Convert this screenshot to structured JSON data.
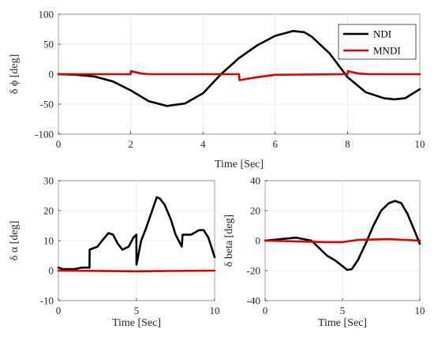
{
  "chart_data": [
    {
      "type": "line",
      "id": "phi",
      "xlabel": "Time [Sec]",
      "ylabel": "δ ϕ [deg]",
      "xlim": [
        0,
        10
      ],
      "ylim": [
        -100,
        100
      ],
      "xticks": [
        "0",
        "2",
        "4",
        "6",
        "8",
        "10"
      ],
      "yticks": [
        "-100",
        "-50",
        "0",
        "50",
        "100"
      ],
      "grid": true,
      "legend": {
        "position": "top-right",
        "entries": [
          "NDI",
          "MNDI"
        ]
      },
      "series": [
        {
          "name": "NDI",
          "color": "#000000",
          "x": [
            0,
            0.5,
            1.0,
            1.5,
            2.0,
            2.5,
            3.0,
            3.5,
            4.0,
            4.5,
            5.0,
            5.5,
            6.0,
            6.5,
            6.8,
            7.0,
            7.5,
            8.0,
            8.5,
            9.0,
            9.3,
            9.6,
            10.0
          ],
          "y": [
            0,
            -1,
            -4,
            -12,
            -27,
            -45,
            -53,
            -49,
            -32,
            0,
            27,
            48,
            64,
            72,
            70,
            63,
            35,
            -5,
            -30,
            -40,
            -42,
            -40,
            -25
          ]
        },
        {
          "name": "MNDI",
          "color": "#e00000",
          "x": [
            0,
            2.0,
            2.01,
            2.3,
            2.5,
            5.0,
            5.01,
            5.5,
            6.0,
            8.0,
            8.01,
            8.3,
            8.6,
            10.0
          ],
          "y": [
            0,
            0,
            5,
            1,
            0,
            0,
            -10,
            -5,
            -1,
            0,
            5,
            1,
            0,
            0
          ]
        }
      ]
    },
    {
      "type": "line",
      "id": "alpha",
      "xlabel": "Time [Sec]",
      "ylabel": "δ α [deg]",
      "xlim": [
        0,
        10
      ],
      "ylim": [
        -10,
        30
      ],
      "xticks": [
        "0",
        "5",
        "10"
      ],
      "yticks": [
        "-10",
        "0",
        "10",
        "20",
        "30"
      ],
      "grid": true,
      "series": [
        {
          "name": "NDI",
          "color": "#000000",
          "x": [
            0,
            0.3,
            1.0,
            1.5,
            1.99,
            2.0,
            2.5,
            2.8,
            3.2,
            3.5,
            3.8,
            4.1,
            4.5,
            4.8,
            4.99,
            5.0,
            5.3,
            5.6,
            6.0,
            6.3,
            6.5,
            6.8,
            7.2,
            7.5,
            7.9,
            7.95,
            8.0,
            8.5,
            9.0,
            9.3,
            9.6,
            10.0
          ],
          "y": [
            1,
            0.5,
            0.5,
            1,
            1,
            7,
            8,
            10,
            12.5,
            12,
            9,
            7,
            8,
            11,
            12,
            2,
            10,
            14,
            20,
            24.5,
            24,
            22,
            17,
            12,
            8,
            12,
            12,
            12,
            13.5,
            13.5,
            11,
            4.5
          ]
        },
        {
          "name": "MNDI",
          "color": "#e00000",
          "x": [
            0,
            5,
            10
          ],
          "y": [
            0,
            -0.2,
            0
          ]
        }
      ]
    },
    {
      "type": "line",
      "id": "beta",
      "xlabel": "Time [Sec]",
      "ylabel": "δ beta [deg]",
      "xlim": [
        0,
        10
      ],
      "ylim": [
        -40,
        40
      ],
      "xticks": [
        "0",
        "5",
        "10"
      ],
      "yticks": [
        "-40",
        "-20",
        "0",
        "20",
        "40"
      ],
      "grid": true,
      "series": [
        {
          "name": "NDI",
          "color": "#000000",
          "x": [
            0,
            1.0,
            2.0,
            3.0,
            4.0,
            4.5,
            5.0,
            5.3,
            5.6,
            6.0,
            6.5,
            7.0,
            7.5,
            8.0,
            8.4,
            8.8,
            9.2,
            9.6,
            10.0
          ],
          "y": [
            0,
            1,
            2,
            0,
            -10,
            -13,
            -17,
            -19.5,
            -19,
            -13,
            -2,
            10,
            20,
            25,
            26.5,
            25,
            18,
            8,
            -2
          ]
        },
        {
          "name": "MNDI",
          "color": "#e00000",
          "x": [
            0,
            2,
            4,
            5,
            6,
            8,
            10
          ],
          "y": [
            0,
            -0.5,
            -1,
            -1,
            0.5,
            1,
            0
          ]
        }
      ]
    }
  ]
}
